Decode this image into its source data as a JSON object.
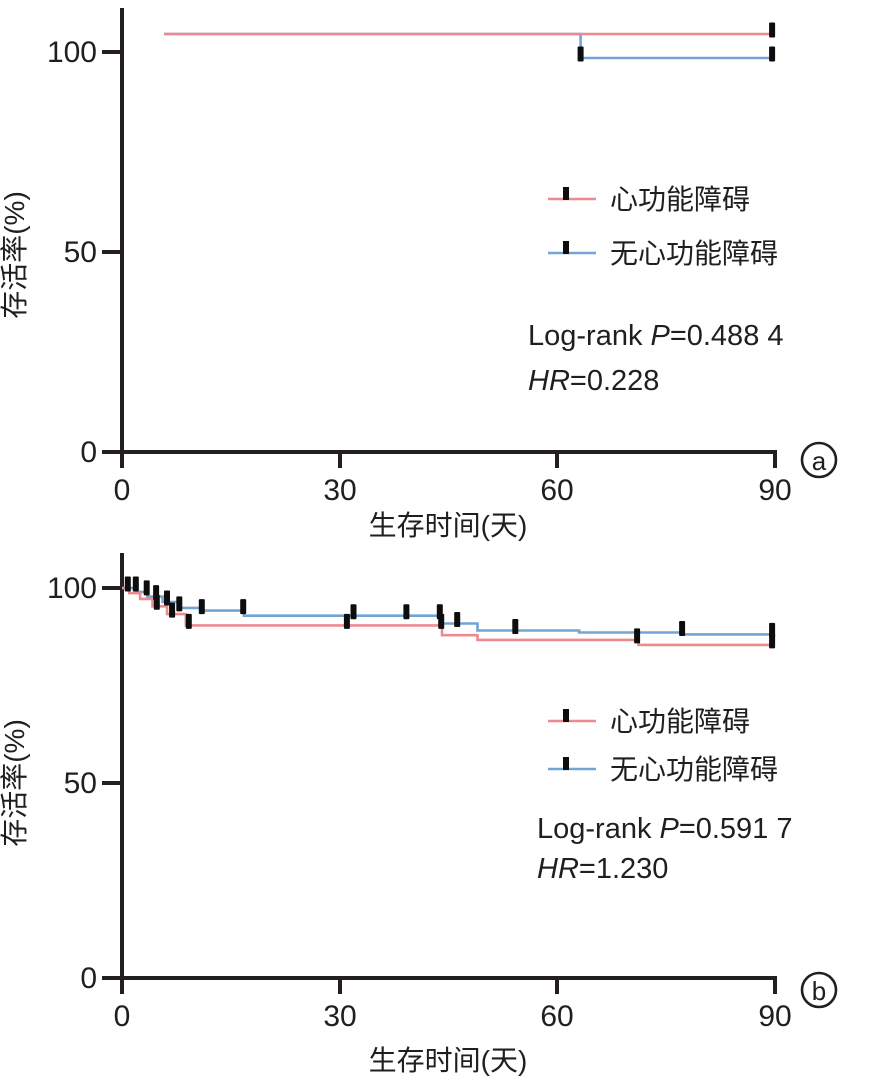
{
  "figure": {
    "background": "#ffffff",
    "y_axis_label": "存活率(%)",
    "x_axis_label": "生存时间(天)",
    "colors": {
      "red": "#ec8b8f",
      "blue": "#72a5d6",
      "censor": "#0d0d0d",
      "axis": "#231f20",
      "text": "#1f1f1f"
    }
  },
  "chart_data": [
    {
      "panel": "a",
      "panel_label": "a",
      "type": "line",
      "subtype": "kaplan-meier-step",
      "title": "",
      "xlabel": "生存时间(天)",
      "ylabel": "存活率(%)",
      "xlim": [
        0,
        90
      ],
      "ylim": [
        0,
        110
      ],
      "grid": false,
      "legend_position": "center-right",
      "x_tick_values": [
        0,
        30,
        60,
        90
      ],
      "x_tick_labels": [
        "0",
        "30",
        "60",
        "90"
      ],
      "y_tick_values": [
        100,
        50,
        0
      ],
      "y_tick_labels": [
        "100",
        "50",
        "0"
      ],
      "series": [
        {
          "name": "心功能障碍",
          "color_key": "red",
          "color": "#ec8b8f",
          "points": [
            [
              5.8,
              104.5
            ],
            [
              90,
              104.5
            ]
          ],
          "censor_marks": [
            [
              89.6,
              104.5
            ]
          ]
        },
        {
          "name": "无心功能障碍",
          "color_key": "blue",
          "color": "#72a5d6",
          "points": [
            [
              5.8,
              104.5
            ],
            [
              63.2,
              104.5
            ],
            [
              63.2,
              98.5
            ],
            [
              90,
              98.5
            ]
          ],
          "censor_marks": [
            [
              63.2,
              98.5
            ],
            [
              89.6,
              98.5
            ]
          ]
        }
      ],
      "stats": {
        "logrank_prefix": "Log-rank",
        "p_label": "P",
        "p_value": "=0.488 4",
        "hr_label": "HR",
        "hr_value": "=0.228"
      },
      "note": "Curves are drawn slightly above the 100% tick as in the source figure; red group stays ~100% for days 6-90, blue group drops once near day 63 to ~98.5%."
    },
    {
      "panel": "b",
      "panel_label": "b",
      "type": "line",
      "subtype": "kaplan-meier-step",
      "title": "",
      "xlabel": "生存时间(天)",
      "ylabel": "存活率(%)",
      "xlim": [
        0,
        90
      ],
      "ylim": [
        0,
        110
      ],
      "grid": false,
      "legend_position": "center-right",
      "x_tick_values": [
        0,
        30,
        60,
        90
      ],
      "x_tick_labels": [
        "0",
        "30",
        "60",
        "90"
      ],
      "y_tick_values": [
        100,
        50,
        0
      ],
      "y_tick_labels": [
        "100",
        "50",
        "0"
      ],
      "series": [
        {
          "name": "心功能障碍",
          "color_key": "red",
          "color": "#ec8b8f",
          "points": [
            [
              0,
              100
            ],
            [
              1,
              100
            ],
            [
              1,
              98.7
            ],
            [
              2.5,
              98.7
            ],
            [
              2.5,
              97.2
            ],
            [
              4.2,
              97.2
            ],
            [
              4.2,
              95.3
            ],
            [
              6.2,
              95.3
            ],
            [
              6.2,
              93.3
            ],
            [
              8.8,
              93.3
            ],
            [
              8.8,
              90.4
            ],
            [
              44.1,
              90.4
            ],
            [
              44.1,
              87.9
            ],
            [
              49,
              87.9
            ],
            [
              49,
              86.7
            ],
            [
              71.2,
              86.7
            ],
            [
              71.2,
              85.4
            ],
            [
              90,
              85.4
            ]
          ],
          "censor_marks": [
            [
              0.8,
              100
            ],
            [
              4.8,
              95.3
            ],
            [
              6.9,
              93.3
            ],
            [
              9.2,
              90.4
            ],
            [
              31,
              90.4
            ],
            [
              44,
              90.4
            ],
            [
              71,
              86.7
            ],
            [
              89.6,
              85.4
            ]
          ]
        },
        {
          "name": "无心功能障碍",
          "color_key": "blue",
          "color": "#72a5d6",
          "points": [
            [
              0,
              100
            ],
            [
              1.9,
              100
            ],
            [
              1.9,
              99
            ],
            [
              3.5,
              99
            ],
            [
              3.5,
              97.8
            ],
            [
              5.6,
              97.8
            ],
            [
              5.6,
              96.4
            ],
            [
              7.9,
              96.4
            ],
            [
              7.9,
              94.9
            ],
            [
              10.9,
              94.9
            ],
            [
              10.9,
              94.2
            ],
            [
              16.8,
              94.2
            ],
            [
              16.8,
              92.9
            ],
            [
              43.9,
              92.9
            ],
            [
              43.9,
              90.9
            ],
            [
              49,
              90.9
            ],
            [
              49,
              89.1
            ],
            [
              63,
              89.1
            ],
            [
              63,
              88.6
            ],
            [
              77.2,
              88.6
            ],
            [
              77.2,
              88.1
            ],
            [
              90,
              88.1
            ]
          ],
          "censor_marks": [
            [
              1.9,
              100
            ],
            [
              3.4,
              99
            ],
            [
              4.7,
              97.8
            ],
            [
              6.2,
              96.4
            ],
            [
              7.9,
              94.9
            ],
            [
              11,
              94.2
            ],
            [
              16.7,
              94.2
            ],
            [
              31.9,
              92.9
            ],
            [
              39.2,
              92.9
            ],
            [
              43.8,
              92.9
            ],
            [
              46.2,
              90.9
            ],
            [
              54.2,
              89.1
            ],
            [
              77.2,
              88.6
            ],
            [
              89.6,
              88.1
            ]
          ]
        }
      ],
      "stats": {
        "logrank_prefix": "Log-rank",
        "p_label": "P",
        "p_value": "=0.591 7",
        "hr_label": "HR",
        "hr_value": "=1.230"
      },
      "note": "Both groups start at 100% and step down over the first ~10 days; red plateaus ~90% then ends ~85%, blue plateaus ~93% then ends ~88% at day 90."
    }
  ]
}
